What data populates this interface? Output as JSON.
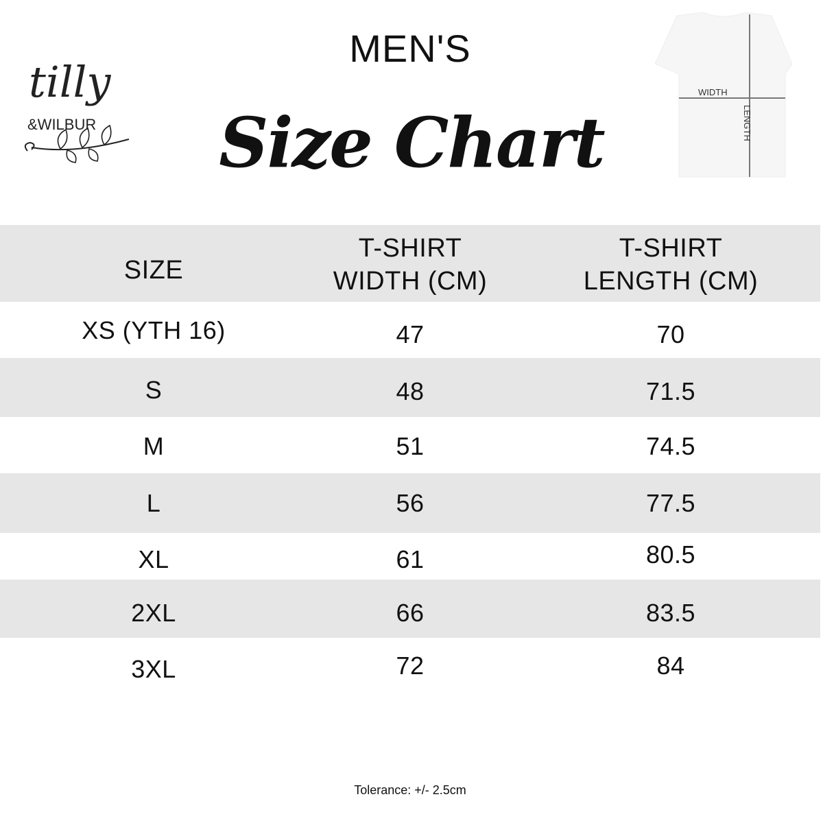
{
  "brand": {
    "logo_text": "tilly & WILBUR"
  },
  "heading": {
    "subtitle": "MEN'S",
    "title": "Size Chart"
  },
  "diagram": {
    "width_label": "WIDTH",
    "length_label": "LENGTH"
  },
  "table": {
    "headers": [
      [
        "SIZE"
      ],
      [
        "T-SHIRT",
        "WIDTH (CM)"
      ],
      [
        "T-SHIRT",
        "LENGTH (CM)"
      ]
    ],
    "rows": [
      [
        "XS (YTH 16)",
        "47",
        "70"
      ],
      [
        "S",
        "48",
        "71.5"
      ],
      [
        "M",
        "51",
        "74.5"
      ],
      [
        "L",
        "56",
        "77.5"
      ],
      [
        "XL",
        "61",
        "80.5"
      ],
      [
        "2XL",
        "66",
        "83.5"
      ],
      [
        "3XL",
        "72",
        "84"
      ]
    ],
    "band_color": "#e6e6e6"
  },
  "footer": {
    "tolerance": "Tolerance: +/- 2.5cm"
  }
}
